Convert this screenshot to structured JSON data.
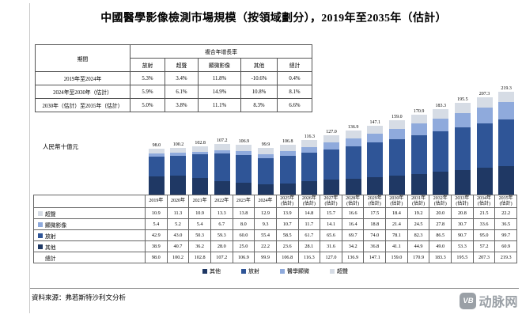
{
  "page": {
    "title": "中國醫學影像檢測市場規模（按領域劃分），2019年至2035年（估計）",
    "source": "資料來源：弗若斯特沙利文分析",
    "watermark_badge": "VB",
    "watermark_text": "动脉网"
  },
  "cagr_table": {
    "period_header": "期間",
    "group_header": "複合年增長率",
    "columns": [
      "放射",
      "超聲",
      "顯微影像",
      "其他",
      "總計"
    ],
    "rows": [
      {
        "period": "2019年至2024年",
        "values": [
          "5.3%",
          "3.4%",
          "11.8%",
          "-10.6%",
          "0.4%"
        ]
      },
      {
        "period": "2024年至2030年（估計）",
        "values": [
          "5.9%",
          "6.1%",
          "14.9%",
          "10.8%",
          "8.1%"
        ]
      },
      {
        "period": "2030年（估計）至2035年（估計）",
        "values": [
          "5.0%",
          "3.8%",
          "11.1%",
          "8.3%",
          "6.6%"
        ]
      }
    ]
  },
  "chart_data": {
    "type": "bar",
    "stacked": true,
    "title": "中國醫學影像檢測市場規模（按領域劃分），2019年至2035年（估計）",
    "ylabel": "人民幣十億元",
    "ylim": [
      0,
      230
    ],
    "grid": false,
    "legend_position": "bottom",
    "categories": [
      "2019年",
      "2020年",
      "2021年",
      "2022年",
      "2023年",
      "2024年",
      "2025年(估計)",
      "2026年(估計)",
      "2027年(估計)",
      "2028年(估計)",
      "2029年(估計)",
      "2030年(估計)",
      "2031年(估計)",
      "2032年(估計)",
      "2033年(估計)",
      "2034年(估計)",
      "2035年(估計)"
    ],
    "series": [
      {
        "name": "其他",
        "color": "#1f3864",
        "values": [
          38.9,
          40.7,
          36.2,
          28.0,
          25.0,
          22.2,
          23.6,
          28.1,
          31.6,
          34.2,
          36.8,
          41.1,
          44.9,
          49.0,
          53.3,
          57.2,
          60.9
        ]
      },
      {
        "name": "放射",
        "color": "#2f5597",
        "values": [
          42.9,
          43.0,
          50.3,
          59.3,
          60.0,
          55.4,
          58.5,
          61.7,
          65.6,
          69.7,
          74.0,
          78.1,
          82.3,
          86.5,
          90.7,
          95.0,
          99.7
        ]
      },
      {
        "name": "醫學顯微",
        "color": "#8faadc",
        "values": [
          5.4,
          5.2,
          5.4,
          6.7,
          8.0,
          9.3,
          10.7,
          11.7,
          14.1,
          16.4,
          18.8,
          21.4,
          24.5,
          27.8,
          30.7,
          33.6,
          36.5
        ]
      },
      {
        "name": "超聲",
        "color": "#d6dce5",
        "values": [
          10.9,
          11.3,
          10.9,
          13.3,
          13.8,
          12.9,
          13.9,
          14.8,
          15.7,
          16.6,
          17.5,
          18.4,
          19.2,
          20.0,
          20.8,
          21.5,
          22.2
        ]
      }
    ],
    "totals": [
      98.0,
      100.2,
      102.8,
      107.2,
      106.9,
      99.9,
      106.8,
      116.3,
      127.0,
      136.9,
      147.1,
      159.0,
      170.9,
      183.3,
      195.5,
      207.3,
      219.3
    ],
    "legend": [
      "其他",
      "放射",
      "醫學顯微",
      "超聲"
    ]
  },
  "bottom_table": {
    "rows": [
      {
        "label": "超聲",
        "color": "#d6dce5",
        "values": [
          10.9,
          11.3,
          10.9,
          13.3,
          13.8,
          12.9,
          13.9,
          14.8,
          15.7,
          16.6,
          17.5,
          18.4,
          19.2,
          20.0,
          20.8,
          21.5,
          22.2
        ]
      },
      {
        "label": "顯微影像",
        "color": "#8faadc",
        "values": [
          5.4,
          5.2,
          5.4,
          6.7,
          8.0,
          9.3,
          10.7,
          11.7,
          14.1,
          16.4,
          18.8,
          21.4,
          24.5,
          27.8,
          30.7,
          33.6,
          36.5
        ]
      },
      {
        "label": "放射",
        "color": "#2f5597",
        "values": [
          42.9,
          43.0,
          50.3,
          59.3,
          60.0,
          55.4,
          58.5,
          61.7,
          65.6,
          69.7,
          74.0,
          78.1,
          82.3,
          86.5,
          90.7,
          95.0,
          99.7
        ]
      },
      {
        "label": "其他",
        "color": "#1f3864",
        "values": [
          38.9,
          40.7,
          36.2,
          28.0,
          25.0,
          22.2,
          23.6,
          28.1,
          31.6,
          34.2,
          36.8,
          41.1,
          44.9,
          49.0,
          53.3,
          57.2,
          60.9
        ]
      },
      {
        "label": "總計",
        "color": "",
        "values": [
          98.0,
          100.2,
          102.8,
          107.2,
          106.9,
          99.9,
          106.8,
          116.3,
          127.0,
          136.9,
          147.1,
          159.0,
          170.9,
          183.3,
          195.5,
          207.3,
          219.3
        ]
      }
    ]
  }
}
